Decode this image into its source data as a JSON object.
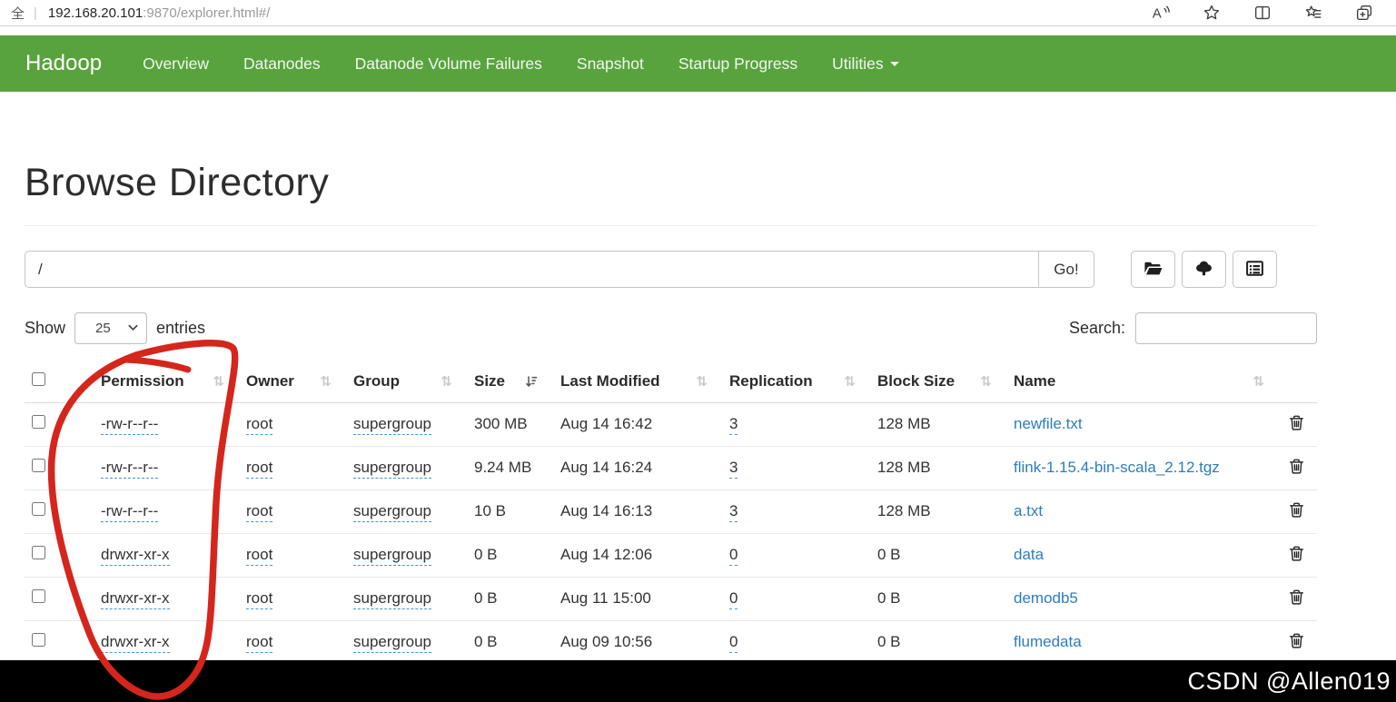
{
  "browser": {
    "security_icon": "全",
    "url_host": "192.168.20.101",
    "url_path": ":9870/explorer.html#/"
  },
  "navbar": {
    "brand": "Hadoop",
    "items": [
      {
        "label": "Overview",
        "dropdown": false
      },
      {
        "label": "Datanodes",
        "dropdown": false
      },
      {
        "label": "Datanode Volume Failures",
        "dropdown": false
      },
      {
        "label": "Snapshot",
        "dropdown": false
      },
      {
        "label": "Startup Progress",
        "dropdown": false
      },
      {
        "label": "Utilities",
        "dropdown": true
      }
    ]
  },
  "page": {
    "title": "Browse Directory"
  },
  "path_bar": {
    "value": "/",
    "go_label": "Go!"
  },
  "controls": {
    "show_label": "Show",
    "page_size": "25",
    "entries_label": "entries",
    "search_label": "Search:",
    "search_value": ""
  },
  "table": {
    "headers": [
      {
        "label": "Permission",
        "sorted": false
      },
      {
        "label": "Owner",
        "sorted": false
      },
      {
        "label": "Group",
        "sorted": false
      },
      {
        "label": "Size",
        "sorted": true
      },
      {
        "label": "Last Modified",
        "sorted": false
      },
      {
        "label": "Replication",
        "sorted": false
      },
      {
        "label": "Block Size",
        "sorted": false
      },
      {
        "label": "Name",
        "sorted": false
      }
    ],
    "rows": [
      {
        "permission": "-rw-r--r--",
        "owner": "root",
        "group": "supergroup",
        "size": "300 MB",
        "modified": "Aug 14 16:42",
        "replication": "3",
        "block_size": "128 MB",
        "name": "newfile.txt"
      },
      {
        "permission": "-rw-r--r--",
        "owner": "root",
        "group": "supergroup",
        "size": "9.24 MB",
        "modified": "Aug 14 16:24",
        "replication": "3",
        "block_size": "128 MB",
        "name": "flink-1.15.4-bin-scala_2.12.tgz"
      },
      {
        "permission": "-rw-r--r--",
        "owner": "root",
        "group": "supergroup",
        "size": "10 B",
        "modified": "Aug 14 16:13",
        "replication": "3",
        "block_size": "128 MB",
        "name": "a.txt"
      },
      {
        "permission": "drwxr-xr-x",
        "owner": "root",
        "group": "supergroup",
        "size": "0 B",
        "modified": "Aug 14 12:06",
        "replication": "0",
        "block_size": "0 B",
        "name": "data"
      },
      {
        "permission": "drwxr-xr-x",
        "owner": "root",
        "group": "supergroup",
        "size": "0 B",
        "modified": "Aug 11 15:00",
        "replication": "0",
        "block_size": "0 B",
        "name": "demodb5"
      },
      {
        "permission": "drwxr-xr-x",
        "owner": "root",
        "group": "supergroup",
        "size": "0 B",
        "modified": "Aug 09 10:56",
        "replication": "0",
        "block_size": "0 B",
        "name": "flumedata"
      }
    ]
  },
  "watermark": "CSDN @Allen019",
  "colors": {
    "navbar_green": "#58a33e",
    "link_blue": "#2b7dbf",
    "annotation_red": "#d5261b"
  }
}
